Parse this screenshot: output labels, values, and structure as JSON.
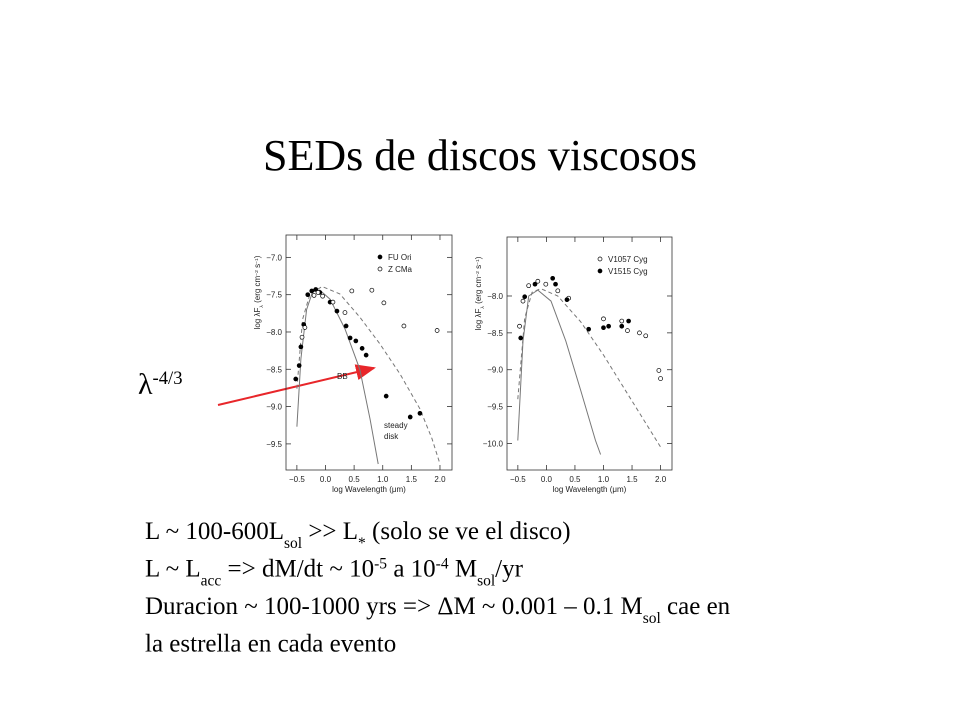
{
  "title": "SEDs de discos viscosos",
  "annotation": [
    {
      "text": "λ"
    },
    {
      "text": "-4/3",
      "pos": "sup"
    }
  ],
  "bullets": [
    [
      {
        "text": "L ~ 100-600L"
      },
      {
        "text": "sol",
        "pos": "sub"
      },
      {
        "text": " >> L"
      },
      {
        "text": "*",
        "pos": "sub"
      },
      {
        "text": " (solo se ve el disco)"
      }
    ],
    [
      {
        "text": "L ~ L"
      },
      {
        "text": "acc",
        "pos": "sub"
      },
      {
        "text": " => dM/dt ~ 10"
      },
      {
        "text": "-5",
        "pos": "sup"
      },
      {
        "text": " a 10"
      },
      {
        "text": "-4",
        "pos": "sup"
      },
      {
        "text": " M"
      },
      {
        "text": "sol",
        "pos": "sub"
      },
      {
        "text": "/yr"
      }
    ],
    [
      {
        "text": "Duracion ~ 100-1000 yrs => ΔM ~ 0.001 – 0.1 M"
      },
      {
        "text": "sol",
        "pos": "sub"
      },
      {
        "text": " cae en"
      }
    ],
    [
      {
        "text": "la estrella en  cada evento"
      }
    ]
  ],
  "chart_data": [
    {
      "type": "scatter",
      "x_label": "log Wavelength (μm)",
      "y_label": [
        {
          "text": "log λF"
        },
        {
          "text": "λ",
          "pos": "sub"
        },
        {
          "text": " (erg cm"
        },
        {
          "text": "−2",
          "pos": "sup"
        },
        {
          "text": " s"
        },
        {
          "text": "−1",
          "pos": "sup"
        },
        {
          "text": ")"
        }
      ],
      "xlim": [
        -0.69,
        2.21
      ],
      "ylim": [
        -9.85,
        -6.7
      ],
      "xticks": [
        {
          "value": -0.5,
          "label": "−0.5"
        },
        {
          "value": 0,
          "label": "0.0"
        },
        0.5,
        {
          "value": 1,
          "label": "1.0"
        },
        1.5,
        {
          "value": 2,
          "label": "2.0"
        }
      ],
      "yticks": [
        {
          "value": -7,
          "label": "−7.0"
        },
        {
          "value": -7.5,
          "label": "−7.5"
        },
        {
          "value": -8,
          "label": "−8.0"
        },
        {
          "value": -8.5,
          "label": "−8.5"
        },
        {
          "value": -9,
          "label": "−9.0"
        },
        {
          "value": -9.5,
          "label": "−9.5"
        }
      ],
      "legend": "upper right",
      "series": [
        {
          "name": "FU Ori",
          "color": "#000000",
          "marker": "filled",
          "x": [
            -0.52,
            -0.46,
            -0.43,
            -0.38,
            -0.31,
            -0.24,
            -0.17,
            -0.1,
            0.08,
            0.2,
            0.36,
            0.43,
            0.53,
            0.64,
            0.71,
            1.06,
            1.48,
            1.65
          ],
          "values": [
            -8.63,
            -8.45,
            -8.2,
            -7.9,
            -7.5,
            -7.45,
            -7.43,
            -7.47,
            -7.6,
            -7.72,
            -7.92,
            -8.08,
            -8.12,
            -8.22,
            -8.31,
            -8.86,
            -9.14,
            -9.09
          ]
        },
        {
          "name": "Z CMa",
          "color": "#000000",
          "marker": "open",
          "x": [
            -0.41,
            -0.36,
            -0.2,
            -0.13,
            -0.05,
            0.13,
            0.34,
            0.46,
            0.81,
            1.02,
            1.37,
            1.95
          ],
          "values": [
            -8.07,
            -7.94,
            -7.51,
            -7.47,
            -7.52,
            -7.6,
            -7.74,
            -7.45,
            -7.44,
            -7.61,
            -7.92,
            -7.98
          ]
        }
      ],
      "curves": [
        {
          "label": [
            "BB"
          ],
          "style": "solid",
          "color": "#777777",
          "x": [
            -0.5,
            -0.43,
            -0.33,
            -0.22,
            -0.1,
            0.08,
            0.34,
            0.6,
            0.78,
            0.92
          ],
          "y": [
            -9.27,
            -8.36,
            -7.7,
            -7.45,
            -7.44,
            -7.56,
            -7.96,
            -8.5,
            -9.17,
            -9.77
          ]
        },
        {
          "label": [
            "steady",
            "disk"
          ],
          "style": "dashed",
          "color": "#777777",
          "x": [
            -0.5,
            -0.4,
            -0.27,
            -0.06,
            0.25,
            0.6,
            0.95,
            1.3,
            1.65,
            1.86,
            2.0
          ],
          "y": [
            -8.76,
            -7.83,
            -7.49,
            -7.39,
            -7.49,
            -7.8,
            -8.16,
            -8.56,
            -9.03,
            -9.43,
            -9.77
          ]
        }
      ]
    },
    {
      "type": "scatter",
      "x_label": "log Wavelength (μm)",
      "y_label": [
        {
          "text": "log λF"
        },
        {
          "text": "λ",
          "pos": "sub"
        },
        {
          "text": " (erg cm"
        },
        {
          "text": "−2",
          "pos": "sup"
        },
        {
          "text": " s"
        },
        {
          "text": "−1",
          "pos": "sup"
        },
        {
          "text": ")"
        }
      ],
      "xlim": [
        -0.69,
        2.2
      ],
      "ylim": [
        -10.36,
        -7.2
      ],
      "xticks": [
        {
          "value": -0.5,
          "label": "−0.5"
        },
        {
          "value": 0,
          "label": "0.0"
        },
        0.5,
        {
          "value": 1,
          "label": "1.0"
        },
        1.5,
        {
          "value": 2,
          "label": "2.0"
        }
      ],
      "yticks": [
        {
          "value": -8,
          "label": "−8.0"
        },
        {
          "value": -8.5,
          "label": "−8.5"
        },
        {
          "value": -9,
          "label": "−9.0"
        },
        {
          "value": -9.5,
          "label": "−9.5"
        },
        {
          "value": -10,
          "label": "−10.0"
        }
      ],
      "legend": "upper right",
      "series": [
        {
          "name": "V1057 Cyg",
          "color": "#000000",
          "marker": "open",
          "x": [
            -0.47,
            -0.41,
            -0.31,
            -0.15,
            -0.01,
            0.2,
            0.39,
            1.0,
            1.32,
            1.42,
            1.63,
            1.74,
            1.97,
            2.0
          ],
          "values": [
            -8.41,
            -8.07,
            -7.86,
            -7.8,
            -7.84,
            -7.93,
            -8.03,
            -8.31,
            -8.34,
            -8.47,
            -8.5,
            -8.54,
            -9.01,
            -9.12
          ]
        },
        {
          "name": "V1515 Cyg",
          "color": "#000000",
          "marker": "filled",
          "x": [
            -0.45,
            -0.38,
            -0.2,
            0.11,
            0.16,
            0.36,
            0.74,
            1.0,
            1.09,
            1.32,
            1.44
          ],
          "values": [
            -8.57,
            -8.01,
            -7.84,
            -7.76,
            -7.84,
            -8.05,
            -8.45,
            -8.43,
            -8.41,
            -8.41,
            -8.34
          ]
        }
      ],
      "curves": [
        {
          "style": "solid",
          "color": "#777777",
          "x": [
            -0.5,
            -0.41,
            -0.31,
            -0.15,
            0.08,
            0.34,
            0.6,
            0.86,
            0.95
          ],
          "y": [
            -9.96,
            -8.61,
            -8.0,
            -7.92,
            -8.07,
            -8.61,
            -9.28,
            -9.96,
            -10.15
          ]
        },
        {
          "style": "dashed",
          "color": "#777777",
          "x": [
            -0.5,
            -0.38,
            -0.25,
            -0.1,
            0.2,
            0.6,
            1.0,
            1.4,
            1.8,
            2.0
          ],
          "y": [
            -9.4,
            -8.3,
            -7.95,
            -7.9,
            -8.0,
            -8.35,
            -8.8,
            -9.3,
            -9.8,
            -10.05
          ]
        }
      ]
    }
  ]
}
